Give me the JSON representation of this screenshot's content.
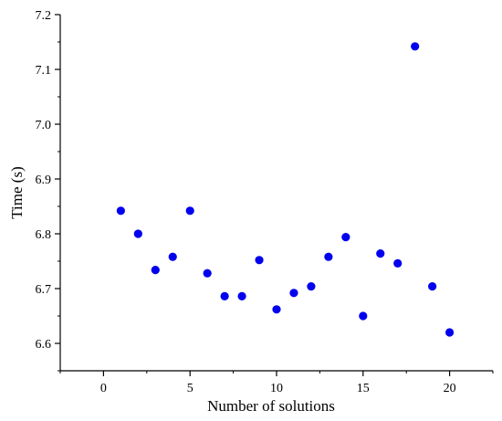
{
  "chart_data": {
    "type": "scatter",
    "title": "",
    "xlabel": "Number of solutions",
    "ylabel": "Time (s)",
    "xlim": [
      -2.5,
      22.5
    ],
    "ylim": [
      6.55,
      7.2
    ],
    "x_ticks": [
      0,
      5,
      10,
      15,
      20
    ],
    "y_ticks": [
      6.6,
      6.7,
      6.8,
      6.9,
      7.0,
      7.1,
      7.2
    ],
    "x_tick_labels": [
      "0",
      "5",
      "10",
      "15",
      "20"
    ],
    "y_tick_labels": [
      "6.6",
      "6.7",
      "6.8",
      "6.9",
      "7.0",
      "7.1",
      "7.2"
    ],
    "marker_color": "#0000ee",
    "grid": false,
    "series": [
      {
        "x": [
          1,
          2,
          3,
          4,
          5,
          6,
          7,
          8,
          9,
          10,
          11,
          12,
          13,
          14,
          15,
          16,
          17,
          18,
          19,
          20
        ],
        "y": [
          6.842,
          6.8,
          6.734,
          6.758,
          6.842,
          6.728,
          6.686,
          6.686,
          6.752,
          6.662,
          6.692,
          6.704,
          6.758,
          6.794,
          6.65,
          6.764,
          6.746,
          7.142,
          6.704,
          6.62
        ]
      }
    ]
  }
}
